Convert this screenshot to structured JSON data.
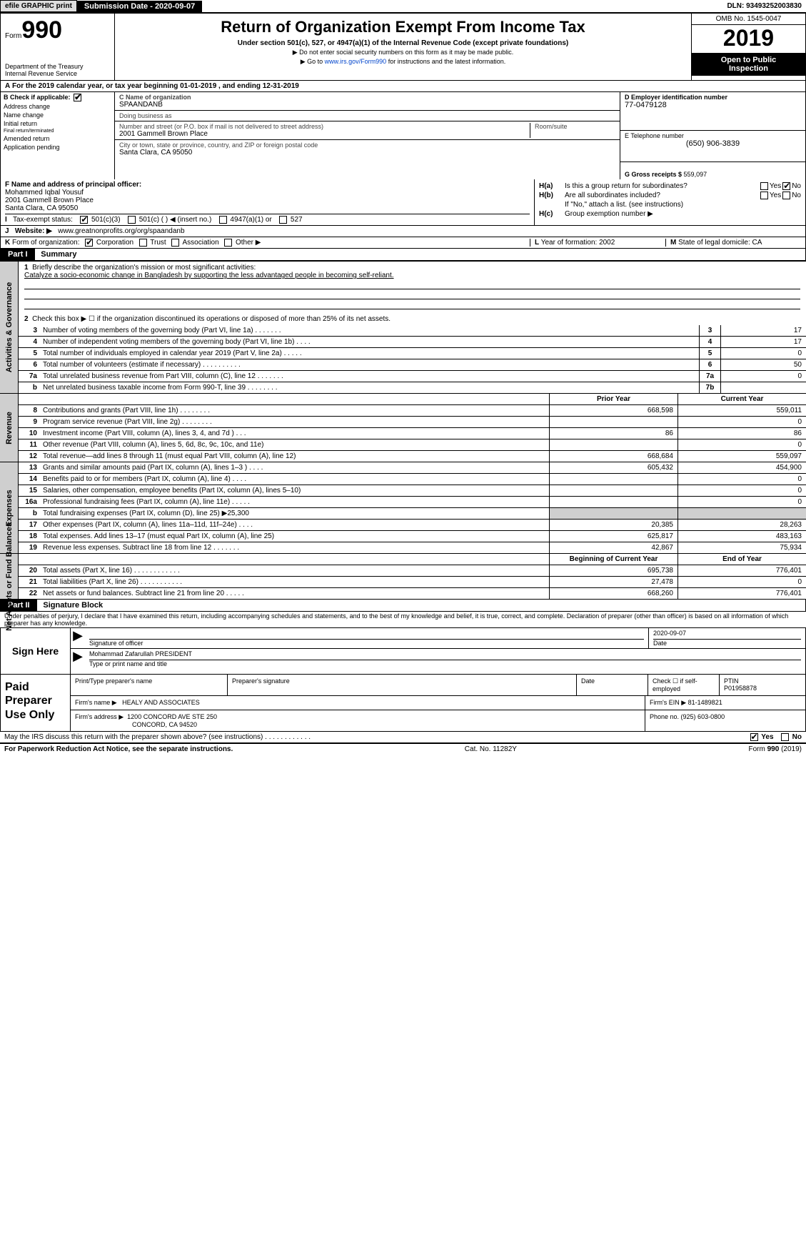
{
  "topbar": {
    "efile": "efile GRAPHIC print",
    "submission_label": "Submission Date - ",
    "submission_date": "2020-09-07",
    "dln_label": "DLN: ",
    "dln": "93493252003830"
  },
  "header": {
    "form_prefix": "Form",
    "form_number": "990",
    "title": "Return of Organization Exempt From Income Tax",
    "subtitle": "Under section 501(c), 527, or 4947(a)(1) of the Internal Revenue Code (except private foundations)",
    "note1": "▶ Do not enter social security numbers on this form as it may be made public.",
    "note2_pre": "▶ Go to ",
    "note2_link": "www.irs.gov/Form990",
    "note2_post": " for instructions and the latest information.",
    "dept1": "Department of the Treasury",
    "dept2": "Internal Revenue Service",
    "omb": "OMB No. 1545-0047",
    "tax_year": "2019",
    "open_public1": "Open to Public",
    "open_public2": "Inspection"
  },
  "section_a": {
    "label_a": "A",
    "text": "For the 2019 calendar year, or tax year beginning ",
    "begin": "01-01-2019",
    "mid": " , and ending ",
    "end": "12-31-2019"
  },
  "col_b": {
    "header_b": "B",
    "header_text": "Check if applicable:",
    "items": [
      {
        "label": "Address change",
        "checked": false
      },
      {
        "label": "Name change",
        "checked": false
      },
      {
        "label": "Initial return",
        "checked": false
      },
      {
        "label": "Final return/terminated",
        "checked": false
      },
      {
        "label": "Amended return",
        "checked": false
      },
      {
        "label": "Application pending",
        "checked": false
      }
    ]
  },
  "col_c": {
    "name_label": "C Name of organization",
    "name": "SPAANDANB",
    "dba_label": "Doing business as",
    "dba": "",
    "addr_label": "Number and street (or P.O. box if mail is not delivered to street address)",
    "addr": "2001 Gammell Brown Place",
    "room_label": "Room/suite",
    "room": "",
    "city_label": "City or town, state or province, country, and ZIP or foreign postal code",
    "city": "Santa Clara, CA  95050"
  },
  "col_d": {
    "ein_label": "D Employer identification number",
    "ein": "77-0479128",
    "phone_label": "E Telephone number",
    "phone": "(650) 906-3839",
    "gross_label": "G Gross receipts $ ",
    "gross": "559,097"
  },
  "row_f": {
    "label": "F Name and address of principal officer:",
    "name": "Mohammed Iqbal Yousuf",
    "addr1": "2001 Gammell Brown Place",
    "addr2": "Santa Clara, CA  95050"
  },
  "row_h": {
    "ha_label": "H(a)",
    "ha_text": "Is this a group return for subordinates?",
    "ha_yes": "Yes",
    "ha_no": "No",
    "ha_checked": "No",
    "hb_label": "H(b)",
    "hb_text": "Are all subordinates included?",
    "hb_yes": "Yes",
    "hb_no": "No",
    "hb_note": "If \"No,\" attach a list. (see instructions)",
    "hc_label": "H(c)",
    "hc_text": "Group exemption number ▶"
  },
  "row_i": {
    "label": "I",
    "text": "Tax-exempt status:",
    "opt1": "501(c)(3)",
    "opt2": "501(c) (   ) ◀ (insert no.)",
    "opt3": "4947(a)(1) or",
    "opt4": "527",
    "checked": "501(c)(3)"
  },
  "row_j": {
    "label": "J",
    "text": "Website: ▶",
    "value": "www.greatnonprofits.org/org/spaandanb"
  },
  "row_k": {
    "label": "K",
    "text": "Form of organization:",
    "opt1": "Corporation",
    "opt2": "Trust",
    "opt3": "Association",
    "opt4": "Other ▶",
    "checked": "Corporation"
  },
  "row_l": {
    "label": "L",
    "text": "Year of formation: ",
    "value": "2002"
  },
  "row_m": {
    "label": "M",
    "text": "State of legal domicile: ",
    "value": "CA"
  },
  "part1": {
    "tag": "Part I",
    "title": "Summary"
  },
  "summary": {
    "q1_label": "1",
    "q1_text": "Briefly describe the organization's mission or most significant activities:",
    "q1_value": "Catalyze a socio-economic change in Bangladesh by supporting the less advantaged people in becoming self-reliant.",
    "q2_label": "2",
    "q2_text": "Check this box ▶ ☐ if the organization discontinued its operations or disposed of more than 25% of its net assets.",
    "gov_lines": [
      {
        "num": "3",
        "text": "Number of voting members of the governing body (Part VI, line 1a)   .      .      .      .      .      .      .",
        "box": "3",
        "val": "17"
      },
      {
        "num": "4",
        "text": "Number of independent voting members of the governing body (Part VI, line 1b)    .      .      .      .",
        "box": "4",
        "val": "17"
      },
      {
        "num": "5",
        "text": "Total number of individuals employed in calendar year 2019 (Part V, line 2a)   .      .      .      .      .",
        "box": "5",
        "val": "0"
      },
      {
        "num": "6",
        "text": "Total number of volunteers (estimate if necessary)    .      .      .      .      .      .      .      .      .      .",
        "box": "6",
        "val": "50"
      },
      {
        "num": "7a",
        "text": "Total unrelated business revenue from Part VIII, column (C), line 12   .      .      .      .      .      .      .",
        "box": "7a",
        "val": "0"
      },
      {
        "num": "b",
        "text": "Net unrelated business taxable income from Form 990-T, line 39   .      .      .      .      .      .      .      .",
        "box": "7b",
        "val": ""
      }
    ],
    "header_prior": "Prior Year",
    "header_current": "Current Year",
    "rev_lines": [
      {
        "num": "8",
        "text": "Contributions and grants (Part VIII, line 1h)   .      .      .      .      .      .      .      .",
        "prior": "668,598",
        "curr": "559,011"
      },
      {
        "num": "9",
        "text": "Program service revenue (Part VIII, line 2g)    .      .      .      .      .      .      .      .",
        "prior": "",
        "curr": "0"
      },
      {
        "num": "10",
        "text": "Investment income (Part VIII, column (A), lines 3, 4, and 7d )    .      .      .",
        "prior": "86",
        "curr": "86"
      },
      {
        "num": "11",
        "text": "Other revenue (Part VIII, column (A), lines 5, 6d, 8c, 9c, 10c, and 11e)",
        "prior": "",
        "curr": "0"
      },
      {
        "num": "12",
        "text": "Total revenue—add lines 8 through 11 (must equal Part VIII, column (A), line 12)",
        "prior": "668,684",
        "curr": "559,097"
      }
    ],
    "exp_lines": [
      {
        "num": "13",
        "text": "Grants and similar amounts paid (Part IX, column (A), lines 1–3 )  .      .      .      .",
        "prior": "605,432",
        "curr": "454,900"
      },
      {
        "num": "14",
        "text": "Benefits paid to or for members (Part IX, column (A), line 4)   .      .      .      .",
        "prior": "",
        "curr": "0"
      },
      {
        "num": "15",
        "text": "Salaries, other compensation, employee benefits (Part IX, column (A), lines 5–10)",
        "prior": "",
        "curr": "0"
      },
      {
        "num": "16a",
        "text": "Professional fundraising fees (Part IX, column (A), line 11e)   .      .      .      .      .",
        "prior": "",
        "curr": "0"
      },
      {
        "num": "b",
        "text": "Total fundraising expenses (Part IX, column (D), line 25) ▶25,300",
        "prior": "",
        "curr": "",
        "shaded": true
      },
      {
        "num": "17",
        "text": "Other expenses (Part IX, column (A), lines 11a–11d, 11f–24e)   .      .      .      .",
        "prior": "20,385",
        "curr": "28,263"
      },
      {
        "num": "18",
        "text": "Total expenses. Add lines 13–17 (must equal Part IX, column (A), line 25)",
        "prior": "625,817",
        "curr": "483,163"
      },
      {
        "num": "19",
        "text": "Revenue less expenses. Subtract line 18 from line 12  .      .      .      .      .      .      .",
        "prior": "42,867",
        "curr": "75,934"
      }
    ],
    "header_begin": "Beginning of Current Year",
    "header_end": "End of Year",
    "net_lines": [
      {
        "num": "20",
        "text": "Total assets (Part X, line 16)   .      .      .      .      .      .      .      .      .      .      .      .",
        "prior": "695,738",
        "curr": "776,401"
      },
      {
        "num": "21",
        "text": "Total liabilities (Part X, line 26)    .      .      .      .      .      .      .      .      .      .      .",
        "prior": "27,478",
        "curr": "0"
      },
      {
        "num": "22",
        "text": "Net assets or fund balances. Subtract line 21 from line 20  .      .      .      .      .",
        "prior": "668,260",
        "curr": "776,401"
      }
    ]
  },
  "vlabels": {
    "gov": "Activities & Governance",
    "rev": "Revenue",
    "exp": "Expenses",
    "net": "Net Assets or Fund Balances"
  },
  "part2": {
    "tag": "Part II",
    "title": "Signature Block"
  },
  "jurat": "Under penalties of perjury, I declare that I have examined this return, including accompanying schedules and statements, and to the best of my knowledge and belief, it is true, correct, and complete. Declaration of preparer (other than officer) is based on all information of which preparer has any knowledge.",
  "sign": {
    "here": "Sign Here",
    "sig_label": "Signature of officer",
    "date_label": "Date",
    "date": "2020-09-07",
    "name": "Mohammad Zafarullah PRESIDENT",
    "name_label": "Type or print name and title"
  },
  "prep": {
    "label": "Paid Preparer Use Only",
    "col1": "Print/Type preparer's name",
    "col2": "Preparer's signature",
    "col3": "Date",
    "col4_pre": "Check ☐ if self-employed",
    "col5_label": "PTIN",
    "col5_val": "P01958878",
    "firm_name_label": "Firm's name    ▶",
    "firm_name": "HEALY AND ASSOCIATES",
    "firm_ein_label": "Firm's EIN ▶",
    "firm_ein": "81-1489821",
    "firm_addr_label": "Firm's address ▶",
    "firm_addr1": "1200 CONCORD AVE STE 250",
    "firm_addr2": "CONCORD, CA  94520",
    "phone_label": "Phone no. ",
    "phone": "(925) 603-0800"
  },
  "discuss": {
    "text": "May the IRS discuss this return with the preparer shown above? (see instructions)    .      .      .      .      .      .      .      .      .      .      .      .",
    "yes": "Yes",
    "no": "No",
    "checked": "Yes"
  },
  "footer": {
    "left": "For Paperwork Reduction Act Notice, see the separate instructions.",
    "center": "Cat. No. 11282Y",
    "right_pre": "Form ",
    "right_form": "990",
    "right_post": " (2019)"
  }
}
